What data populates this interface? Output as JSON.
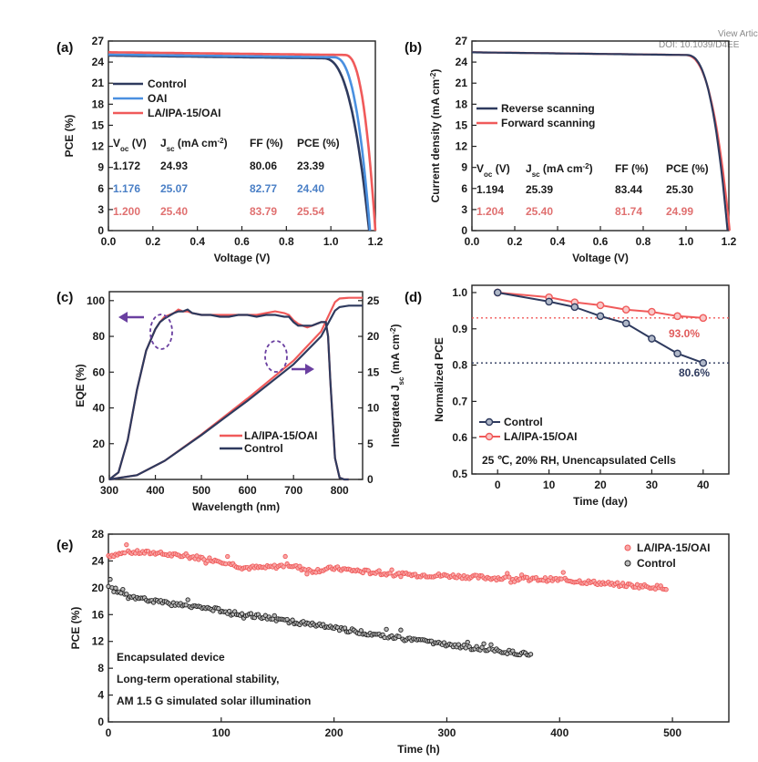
{
  "header": {
    "view_article": "View Artic",
    "doi": "DOI: 10.1039/D4EE"
  },
  "chart_data": [
    {
      "panel_label": "(a)",
      "type": "line",
      "xlabel": "Voltage (V)",
      "ylabel": "PCE (%)",
      "xlim": [
        0.0,
        1.2
      ],
      "ylim": [
        0,
        27
      ],
      "x_ticks": [
        "0.0",
        "0.2",
        "0.4",
        "0.6",
        "0.8",
        "1.0",
        "1.2"
      ],
      "y_ticks": [
        "0",
        "3",
        "6",
        "9",
        "12",
        "15",
        "18",
        "21",
        "24",
        "27"
      ],
      "legend_position": "middle-left",
      "series": [
        {
          "name": "Control",
          "color": "#2e3a5e",
          "jsc": 24.93,
          "voc": 1.172,
          "knee": 0.96
        },
        {
          "name": "OAI",
          "color": "#4a90e0",
          "jsc": 25.07,
          "voc": 1.176,
          "knee": 1.01
        },
        {
          "name": "LA/IPA-15/OAI",
          "color": "#f05a5a",
          "jsc": 25.4,
          "voc": 1.2,
          "knee": 1.06
        }
      ],
      "table": {
        "headers": [
          "V_oc (V)",
          "J_sc (mA cm^-2)",
          "FF (%)",
          "PCE (%)"
        ],
        "rows": [
          {
            "color": "#1a1a1a",
            "cells": [
              "1.172",
              "24.93",
              "80.06",
              "23.39"
            ]
          },
          {
            "color": "#4a7fc6",
            "cells": [
              "1.176",
              "25.07",
              "82.77",
              "24.40"
            ]
          },
          {
            "color": "#e07070",
            "cells": [
              "1.200",
              "25.40",
              "83.79",
              "25.54"
            ]
          }
        ]
      }
    },
    {
      "panel_label": "(b)",
      "type": "line",
      "xlabel": "Voltage (V)",
      "ylabel": "Current density (mA cm^-2)",
      "xlim": [
        0.0,
        1.2
      ],
      "ylim": [
        0,
        27
      ],
      "x_ticks": [
        "0.0",
        "0.2",
        "0.4",
        "0.6",
        "0.8",
        "1.0",
        "1.2"
      ],
      "y_ticks": [
        "0",
        "3",
        "6",
        "9",
        "12",
        "15",
        "18",
        "21",
        "24",
        "27"
      ],
      "legend_position": "middle-left",
      "series": [
        {
          "name": "Reverse scanning",
          "color": "#2e3a5e",
          "jsc": 25.39,
          "voc": 1.194,
          "knee": 1.0
        },
        {
          "name": "Forward scanning",
          "color": "#f05a5a",
          "jsc": 25.4,
          "voc": 1.204,
          "knee": 0.99
        }
      ],
      "table": {
        "headers": [
          "V_oc (V)",
          "J_sc (mA cm^-2)",
          "FF (%)",
          "PCE (%)"
        ],
        "rows": [
          {
            "color": "#1a1a1a",
            "cells": [
              "1.194",
              "25.39",
              "83.44",
              "25.30"
            ]
          },
          {
            "color": "#e07070",
            "cells": [
              "1.204",
              "25.40",
              "81.74",
              "24.99"
            ]
          }
        ]
      }
    },
    {
      "panel_label": "(c)",
      "type": "line",
      "xlabel": "Wavelength (nm)",
      "ylabel": "EQE (%)",
      "y2label": "Integrated J_sc (mA cm^-2)",
      "xlim": [
        300,
        850
      ],
      "ylim": [
        0,
        105
      ],
      "y2lim": [
        0,
        26.25
      ],
      "x_ticks": [
        "300",
        "400",
        "500",
        "600",
        "700",
        "800"
      ],
      "y_ticks": [
        "0",
        "20",
        "40",
        "60",
        "80",
        "100"
      ],
      "y2_ticks": [
        "0",
        "5",
        "10",
        "15",
        "20",
        "25"
      ],
      "legend_position": "bottom-center",
      "series": [
        {
          "name": "LA/IPA-15/OAI",
          "color": "#f05a5a",
          "eqe_x": [
            300,
            320,
            340,
            360,
            380,
            400,
            410,
            420,
            440,
            450,
            460,
            470,
            480,
            500,
            520,
            540,
            560,
            580,
            600,
            620,
            640,
            660,
            680,
            690,
            700,
            710,
            720,
            730,
            740,
            750,
            760,
            770,
            775,
            780,
            790,
            800,
            810,
            820
          ],
          "eqe_y": [
            0,
            4,
            22,
            50,
            72,
            84,
            88,
            91,
            93,
            95,
            94,
            94,
            93,
            92,
            92,
            92,
            92,
            92,
            92,
            92,
            93,
            94,
            93,
            92,
            89,
            87,
            86,
            85,
            86,
            87,
            88,
            88,
            80,
            55,
            12,
            1,
            0,
            0
          ],
          "jsc_x": [
            300,
            360,
            420,
            500,
            600,
            700,
            760,
            790,
            800,
            820,
            850
          ],
          "jsc_y": [
            0,
            0.6,
            2.6,
            6.3,
            11.3,
            16.6,
            20.7,
            24.8,
            25.3,
            25.4,
            25.4
          ]
        },
        {
          "name": "Control",
          "color": "#2e3a5e",
          "eqe_x": [
            300,
            320,
            340,
            360,
            380,
            400,
            410,
            420,
            440,
            450,
            460,
            470,
            480,
            500,
            520,
            540,
            560,
            580,
            600,
            620,
            640,
            660,
            680,
            690,
            700,
            710,
            720,
            730,
            740,
            750,
            760,
            770,
            775,
            780,
            790,
            800,
            810,
            820
          ],
          "eqe_y": [
            0,
            4,
            22,
            50,
            72,
            84,
            88,
            90,
            93,
            94,
            94,
            95,
            93,
            92,
            92,
            91,
            91,
            92,
            92,
            91,
            92,
            92,
            91,
            91,
            88,
            86,
            86,
            86,
            86,
            87,
            88,
            88,
            80,
            55,
            12,
            1,
            0,
            0
          ],
          "jsc_x": [
            300,
            360,
            420,
            500,
            600,
            700,
            760,
            790,
            800,
            820,
            850
          ],
          "jsc_y": [
            0,
            0.6,
            2.6,
            6.2,
            11.0,
            16.1,
            20.0,
            23.6,
            24.1,
            24.3,
            24.3
          ]
        }
      ]
    },
    {
      "panel_label": "(d)",
      "type": "line",
      "xlabel": "Time (day)",
      "ylabel": "Normalized PCE",
      "xlim": [
        -5,
        45
      ],
      "ylim": [
        0.5,
        1.02
      ],
      "x_ticks": [
        "0",
        "10",
        "20",
        "30",
        "40"
      ],
      "y_ticks": [
        "0.5",
        "0.6",
        "0.7",
        "0.8",
        "0.9",
        "1.0"
      ],
      "legend_position": "bottom-left",
      "annotation": "25 ℃, 20% RH, Unencapsulated Cells",
      "series": [
        {
          "name": "Control",
          "color": "#2e3a5e",
          "x": [
            0,
            10,
            15,
            20,
            25,
            30,
            35,
            40
          ],
          "y": [
            1.0,
            0.975,
            0.96,
            0.935,
            0.915,
            0.873,
            0.832,
            0.806
          ],
          "final_label": "80.6%",
          "final_value": 0.806
        },
        {
          "name": "LA/IPA-15/OAI",
          "color": "#f05a5a",
          "x": [
            0,
            10,
            15,
            20,
            25,
            30,
            35,
            40
          ],
          "y": [
            1.0,
            0.987,
            0.973,
            0.965,
            0.953,
            0.947,
            0.935,
            0.93
          ],
          "final_label": "93.0%",
          "final_value": 0.93
        }
      ]
    },
    {
      "panel_label": "(e)",
      "type": "scatter",
      "xlabel": "Time (h)",
      "ylabel": "PCE (%)",
      "xlim": [
        0,
        550
      ],
      "ylim": [
        0,
        28
      ],
      "x_ticks": [
        "0",
        "100",
        "200",
        "300",
        "400",
        "500"
      ],
      "y_ticks": [
        "0",
        "4",
        "8",
        "12",
        "16",
        "20",
        "24",
        "28"
      ],
      "legend_position": "top-right",
      "annotations": [
        "Encapsulated device",
        "Long-term operational stability,",
        "AM 1.5 G simulated solar illumination"
      ],
      "series": [
        {
          "name": "LA/IPA-15/OAI",
          "color": "#f05a5a",
          "x": [
            0,
            20,
            40,
            60,
            80,
            100,
            120,
            140,
            160,
            180,
            200,
            250,
            300,
            350,
            400,
            450,
            495
          ],
          "y": [
            24.8,
            25.3,
            25.2,
            24.8,
            24.5,
            24.0,
            23.0,
            23.0,
            23.4,
            22.5,
            22.9,
            22.0,
            21.8,
            21.4,
            21.2,
            20.5,
            20.0
          ],
          "x_max": 495
        },
        {
          "name": "Control",
          "color": "#222222",
          "x": [
            0,
            10,
            30,
            50,
            80,
            100,
            150,
            200,
            250,
            300,
            350,
            375
          ],
          "y": [
            20.5,
            19.3,
            18.3,
            17.7,
            17.1,
            16.6,
            15.3,
            14.0,
            12.7,
            11.5,
            10.5,
            10.0
          ],
          "x_max": 375
        }
      ]
    }
  ]
}
